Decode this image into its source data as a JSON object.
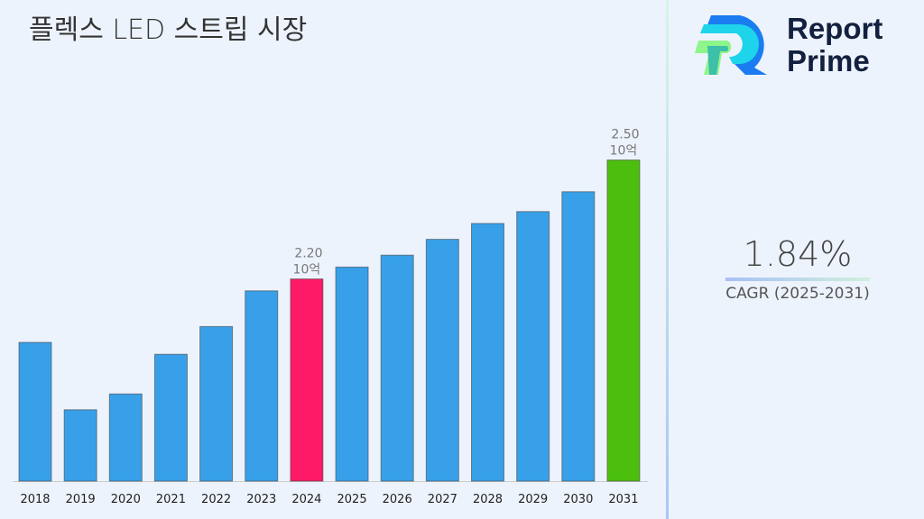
{
  "title": "플렉스 LED 스트립 시장",
  "logo": {
    "line1": "Report",
    "line2": "Prime"
  },
  "cagr": {
    "value": "1.84%",
    "label": "CAGR (2025-2031)"
  },
  "colors": {
    "default_bar": "#38a0e8",
    "highlight_2024": "#fe1a66",
    "highlight_2031": "#4cbf0e"
  },
  "chart_data": {
    "type": "bar",
    "title": "플렉스 LED 스트립 시장",
    "categories": [
      "2018",
      "2019",
      "2020",
      "2021",
      "2022",
      "2023",
      "2024",
      "2025",
      "2026",
      "2027",
      "2028",
      "2029",
      "2030",
      "2031"
    ],
    "values": [
      2.04,
      1.87,
      1.91,
      2.01,
      2.08,
      2.17,
      2.2,
      2.23,
      2.26,
      2.3,
      2.34,
      2.37,
      2.42,
      2.5
    ],
    "unit": "10억",
    "data_labels": [
      {
        "category": "2024",
        "value": "2.20",
        "unit": "10억"
      },
      {
        "category": "2031",
        "value": "2.50",
        "unit": "10억"
      }
    ],
    "ylim": [
      1.69,
      2.66
    ],
    "grid": false,
    "xlabel": "",
    "ylabel": ""
  }
}
